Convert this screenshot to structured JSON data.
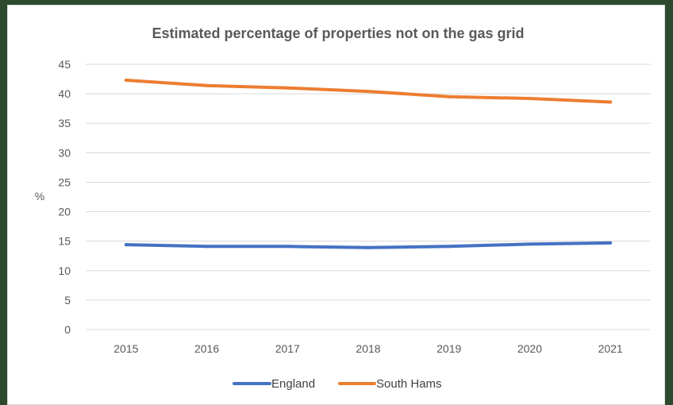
{
  "chart_data": {
    "type": "line",
    "title": "Estimated percentage of properties not on the gas grid",
    "xlabel": "",
    "ylabel": "%",
    "ylim": [
      0,
      45
    ],
    "yticks": [
      0,
      5,
      10,
      15,
      20,
      25,
      30,
      35,
      40,
      45
    ],
    "categories": [
      "2015",
      "2016",
      "2017",
      "2018",
      "2019",
      "2020",
      "2021"
    ],
    "grid": true,
    "legend_position": "bottom",
    "series": [
      {
        "name": "England",
        "color": "#4472c4",
        "values": [
          14.4,
          14.1,
          14.1,
          13.9,
          14.1,
          14.5,
          14.7
        ]
      },
      {
        "name": "South Hams",
        "color": "#ed7d31",
        "values": [
          42.3,
          41.4,
          41.0,
          40.4,
          39.5,
          39.2,
          38.6
        ]
      }
    ]
  }
}
